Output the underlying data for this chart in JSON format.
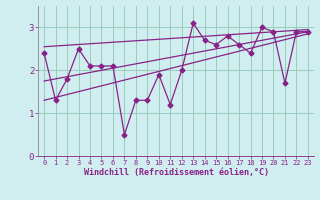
{
  "xlabel": "Windchill (Refroidissement éolien,°C)",
  "bg_color": "#d0eef0",
  "line_color": "#882288",
  "grid_color": "#99ccbb",
  "xlim": [
    -0.5,
    23.5
  ],
  "ylim": [
    0,
    3.5
  ],
  "yticks": [
    0,
    1,
    2,
    3
  ],
  "xticks": [
    0,
    1,
    2,
    3,
    4,
    5,
    6,
    7,
    8,
    9,
    10,
    11,
    12,
    13,
    14,
    15,
    16,
    17,
    18,
    19,
    20,
    21,
    22,
    23
  ],
  "data_x": [
    0,
    1,
    2,
    3,
    4,
    5,
    6,
    7,
    8,
    9,
    10,
    11,
    12,
    13,
    14,
    15,
    16,
    17,
    18,
    19,
    20,
    21,
    22,
    23
  ],
  "data_y": [
    2.4,
    1.3,
    1.8,
    2.5,
    2.1,
    2.1,
    2.1,
    0.5,
    1.3,
    1.3,
    1.9,
    1.2,
    2.0,
    3.1,
    2.7,
    2.6,
    2.8,
    2.6,
    2.4,
    3.0,
    2.9,
    1.7,
    2.9,
    2.9
  ],
  "trend1_x": [
    0,
    23
  ],
  "trend1_y": [
    1.3,
    2.85
  ],
  "trend2_x": [
    0,
    23
  ],
  "trend2_y": [
    1.75,
    2.9
  ],
  "trend3_x": [
    0,
    23
  ],
  "trend3_y": [
    2.55,
    2.95
  ]
}
